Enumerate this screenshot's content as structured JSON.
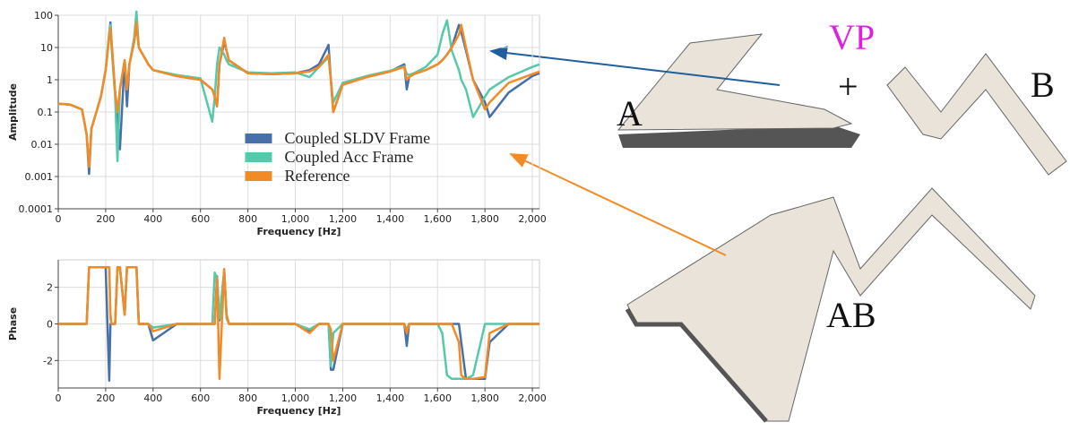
{
  "chart_data": [
    {
      "type": "line",
      "xlabel": "Frequency [Hz]",
      "ylabel": "Amplitude",
      "yscale": "log",
      "grid": true,
      "legend": "center",
      "xlim": [
        0,
        2030
      ],
      "ylim": [
        0.0001,
        100
      ],
      "xticks": [
        0,
        200,
        400,
        600,
        800,
        {
          "value": 1000,
          "label": "1,000"
        },
        {
          "value": 1200,
          "label": "1,200"
        },
        {
          "value": 1400,
          "label": "1,400"
        },
        {
          "value": 1600,
          "label": "1,600"
        },
        {
          "value": 1800,
          "label": "1,800"
        },
        {
          "value": 2000,
          "label": "2,000"
        }
      ],
      "yticks": [
        0.0001,
        0.001,
        0.01,
        0.1,
        1,
        10,
        100
      ],
      "x": [
        0,
        50,
        100,
        120,
        130,
        140,
        180,
        200,
        215,
        220,
        225,
        240,
        250,
        260,
        280,
        290,
        300,
        320,
        330,
        340,
        380,
        400,
        500,
        600,
        650,
        660,
        670,
        680,
        700,
        710,
        720,
        800,
        900,
        1000,
        1060,
        1100,
        1140,
        1150,
        1160,
        1200,
        1300,
        1400,
        1460,
        1470,
        1480,
        1500,
        1550,
        1600,
        1620,
        1640,
        1660,
        1690,
        1700,
        1720,
        1750,
        1800,
        1820,
        1900,
        2000,
        2030
      ],
      "series": [
        {
          "name": "Coupled SLDV Frame",
          "color": "#4770a8",
          "values": [
            0.18,
            0.17,
            0.12,
            0.02,
            0.0012,
            0.03,
            0.3,
            2,
            25,
            60,
            15,
            0.4,
            0.1,
            0.007,
            4,
            0.15,
            3,
            15,
            50,
            10,
            3,
            2,
            1.3,
            1,
            0.5,
            0.3,
            0.15,
            3,
            15,
            8,
            4,
            1.6,
            1.5,
            1.6,
            2,
            3,
            12,
            1,
            0.1,
            0.7,
            1.2,
            1.8,
            3,
            0.5,
            1.2,
            1.5,
            2,
            3,
            4,
            6,
            10,
            50,
            30,
            8,
            1,
            0.2,
            0.07,
            0.4,
            1.3,
            1.6
          ]
        },
        {
          "name": "Coupled Acc Frame",
          "color": "#55c9a9",
          "values": [
            0.18,
            0.17,
            0.12,
            0.02,
            0.002,
            0.03,
            0.3,
            2,
            30,
            50,
            10,
            0.3,
            0.003,
            0.5,
            4,
            0.5,
            3,
            20,
            130,
            10,
            3,
            2,
            1.4,
            1.1,
            0.05,
            0.3,
            3,
            10,
            6,
            4,
            3,
            1.7,
            1.6,
            1.7,
            1.2,
            2.5,
            5,
            1,
            0.2,
            0.8,
            1.3,
            1.9,
            2.6,
            1.5,
            1.4,
            1.6,
            2.5,
            6,
            25,
            70,
            8,
            2,
            1,
            0.5,
            0.07,
            0.3,
            0.5,
            1.2,
            2.5,
            3
          ]
        },
        {
          "name": "Reference",
          "color": "#f28b25",
          "values": [
            0.18,
            0.17,
            0.12,
            0.02,
            0.002,
            0.03,
            0.3,
            2,
            20,
            40,
            15,
            0.4,
            0.1,
            0.5,
            4,
            0.5,
            3,
            15,
            60,
            10,
            3,
            2,
            1.3,
            1,
            0.5,
            0.3,
            0.15,
            3,
            20,
            8,
            4,
            1.6,
            1.5,
            1.6,
            1.8,
            2.5,
            6,
            1,
            0.1,
            0.7,
            1.2,
            1.8,
            2.5,
            1,
            1.2,
            1.5,
            2,
            3,
            4,
            6,
            10,
            25,
            50,
            10,
            1,
            0.12,
            0.2,
            0.8,
            1.5,
            1.8
          ]
        }
      ]
    },
    {
      "type": "line",
      "xlabel": "Frequency [Hz]",
      "ylabel": "Phase",
      "grid": true,
      "xlim": [
        0,
        2030
      ],
      "ylim": [
        -3.5,
        3.5
      ],
      "xticks": [
        0,
        200,
        400,
        600,
        800,
        {
          "value": 1000,
          "label": "1,000"
        },
        {
          "value": 1200,
          "label": "1,200"
        },
        {
          "value": 1400,
          "label": "1,400"
        },
        {
          "value": 1600,
          "label": "1,600"
        },
        {
          "value": 1800,
          "label": "1,800"
        },
        {
          "value": 2000,
          "label": "2,000"
        }
      ],
      "yticks": [
        -2,
        0,
        2
      ],
      "x": [
        0,
        50,
        100,
        120,
        130,
        140,
        180,
        200,
        215,
        220,
        225,
        240,
        250,
        260,
        280,
        290,
        300,
        320,
        330,
        340,
        380,
        400,
        500,
        600,
        650,
        660,
        670,
        680,
        700,
        710,
        720,
        800,
        900,
        1000,
        1060,
        1100,
        1140,
        1150,
        1160,
        1200,
        1300,
        1400,
        1460,
        1470,
        1480,
        1500,
        1550,
        1600,
        1620,
        1640,
        1660,
        1690,
        1700,
        1720,
        1750,
        1800,
        1820,
        1900,
        2000,
        2030
      ],
      "series": [
        {
          "name": "Coupled SLDV Frame",
          "color": "#4770a8",
          "values": [
            0,
            0,
            0,
            0,
            3.1,
            3.1,
            3.1,
            3.1,
            -3.1,
            0,
            0,
            0,
            3.1,
            3.1,
            0.5,
            3.1,
            3.1,
            3.1,
            3.1,
            0,
            0,
            -0.9,
            0,
            0,
            0,
            0,
            2.6,
            0.2,
            2.9,
            0.5,
            0,
            0,
            0,
            0,
            -0.4,
            0,
            0,
            -2.5,
            -2.5,
            0,
            0,
            0,
            0,
            -1.2,
            0,
            0,
            0,
            0,
            0,
            0,
            0,
            0,
            -1,
            -3,
            -3,
            -3,
            -1,
            0,
            0,
            0
          ]
        },
        {
          "name": "Coupled Acc Frame",
          "color": "#55c9a9",
          "values": [
            0,
            0,
            0,
            0,
            3.1,
            3.1,
            3.1,
            3.1,
            3.1,
            0.3,
            0,
            0,
            3.1,
            3.1,
            0.6,
            3.1,
            3.1,
            3.1,
            3.1,
            0,
            0,
            -0.2,
            0,
            0,
            0,
            2.8,
            2.5,
            0.3,
            2.9,
            0.3,
            0,
            0,
            0,
            0,
            -0.3,
            0,
            0,
            -2.3,
            -0.5,
            0,
            0,
            0,
            0,
            -0.3,
            0,
            0,
            0,
            0,
            -0.5,
            -2.8,
            -3,
            -3,
            -3,
            -3,
            -2.8,
            0,
            0,
            0,
            0,
            0
          ]
        },
        {
          "name": "Reference",
          "color": "#f28b25",
          "values": [
            0,
            0,
            0,
            0,
            3.1,
            3.1,
            3.1,
            3.1,
            3.1,
            0.5,
            0,
            0,
            3.1,
            3.1,
            0.5,
            3.1,
            3.1,
            3.1,
            3.1,
            0,
            0,
            -0.4,
            0,
            0,
            0,
            0,
            2.5,
            -3,
            3,
            0.5,
            0,
            0,
            0,
            0,
            -0.5,
            0,
            0,
            -0.3,
            -2,
            0,
            0,
            0,
            0,
            -0.5,
            0,
            0,
            0,
            0,
            0,
            0,
            0,
            -1,
            -2.8,
            -3,
            -3,
            -2.9,
            -0.5,
            0,
            0,
            0
          ]
        }
      ]
    }
  ],
  "illustration": {
    "labels": [
      "A",
      "B",
      "AB",
      "VP",
      "+"
    ]
  }
}
